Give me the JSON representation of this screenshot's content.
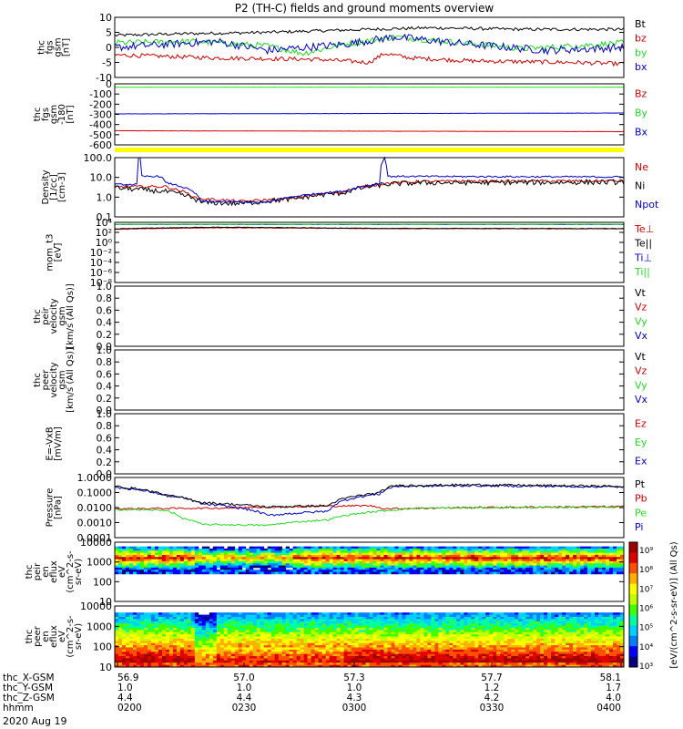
{
  "title": "P2 (TH-C) fields and ground moments overview",
  "date": "2020 Aug 19",
  "colors": {
    "black": "#000000",
    "red": "#d40000",
    "green": "#22dd22",
    "blue": "#0000cc",
    "yellow": "#ffff00"
  },
  "chart_data": [
    {
      "id": "fgs_small",
      "type": "line",
      "ylabel": [
        "thc",
        "fgs",
        "gsm",
        "[nT]"
      ],
      "yticks": [
        "10",
        "5",
        "0",
        "-5",
        "-10"
      ],
      "ylim": [
        -10,
        10
      ],
      "series": [
        {
          "name": "Bt",
          "color": "#000000",
          "anchors": [
            [
              0,
              4
            ],
            [
              0.12,
              4.5
            ],
            [
              0.3,
              5
            ],
            [
              0.5,
              6
            ],
            [
              0.62,
              6.5
            ],
            [
              0.8,
              6
            ],
            [
              1,
              6
            ]
          ],
          "noise": 0.5
        },
        {
          "name": "bz",
          "color": "#d40000",
          "anchors": [
            [
              0,
              -2.5
            ],
            [
              0.2,
              -3.5
            ],
            [
              0.4,
              -4
            ],
            [
              0.5,
              -5
            ],
            [
              0.53,
              -2
            ],
            [
              0.58,
              -3.5
            ],
            [
              0.7,
              -4.5
            ],
            [
              0.9,
              -5
            ],
            [
              1,
              -5.5
            ]
          ],
          "noise": 0.7
        },
        {
          "name": "by",
          "color": "#22dd22",
          "anchors": [
            [
              0,
              1.5
            ],
            [
              0.15,
              2
            ],
            [
              0.3,
              0.5
            ],
            [
              0.37,
              -2
            ],
            [
              0.45,
              1
            ],
            [
              0.55,
              3.5
            ],
            [
              0.72,
              1
            ],
            [
              0.8,
              -0.5
            ],
            [
              1,
              1.5
            ]
          ],
          "noise": 1.0
        },
        {
          "name": "bx",
          "color": "#0000cc",
          "anchors": [
            [
              0,
              0
            ],
            [
              0.2,
              2
            ],
            [
              0.3,
              -1
            ],
            [
              0.45,
              1
            ],
            [
              0.55,
              3.5
            ],
            [
              0.7,
              1
            ],
            [
              0.85,
              -1
            ],
            [
              1,
              0
            ]
          ],
          "noise": 1.3
        }
      ],
      "legend": [
        "Bt",
        "bz",
        "by",
        "bx"
      ]
    },
    {
      "id": "fgs_large",
      "type": "line",
      "ylabel": [
        "thc",
        "fgs",
        "gsm",
        "-180",
        "[nT]"
      ],
      "yticks": [
        "0",
        "-100",
        "-200",
        "-300",
        "-400",
        "-500",
        "-600"
      ],
      "ylim": [
        -650,
        40
      ],
      "series": [
        {
          "name": "Bz",
          "color": "#d40000",
          "anchors": [
            [
              0,
              -490
            ],
            [
              1,
              -500
            ]
          ],
          "noise": 1
        },
        {
          "name": "By",
          "color": "#22dd22",
          "anchors": [
            [
              0,
              2
            ],
            [
              1,
              2
            ]
          ],
          "noise": 0.5
        },
        {
          "name": "Bx",
          "color": "#0000cc",
          "anchors": [
            [
              0,
              -300
            ],
            [
              1,
              -290
            ]
          ],
          "noise": 1
        }
      ],
      "legend": [
        "Bz",
        "By",
        "Bx"
      ]
    },
    {
      "id": "density",
      "type": "line",
      "yscale": "log",
      "ylabel": [
        "Density",
        "[1/cc]",
        "[cm-3]"
      ],
      "yticks": [
        "100.0",
        "10.0",
        "1.0",
        "0.1"
      ],
      "ylim": [
        0.05,
        150
      ],
      "series": [
        {
          "name": "Ne",
          "color": "#d40000",
          "anchors": [
            [
              0,
              3
            ],
            [
              0.1,
              3
            ],
            [
              0.12,
              2
            ],
            [
              0.16,
              0.6
            ],
            [
              0.25,
              0.4
            ],
            [
              0.35,
              0.6
            ],
            [
              0.45,
              1.5
            ],
            [
              0.53,
              4.5
            ],
            [
              0.6,
              6
            ],
            [
              1,
              6.5
            ]
          ],
          "noise": 0.08
        },
        {
          "name": "Ni",
          "color": "#000000",
          "anchors": [
            [
              0,
              2.5
            ],
            [
              0.1,
              1.5
            ],
            [
              0.17,
              0.35
            ],
            [
              0.25,
              0.3
            ],
            [
              0.35,
              0.55
            ],
            [
              0.45,
              1.3
            ],
            [
              0.53,
              4
            ],
            [
              0.6,
              5
            ],
            [
              1,
              5.5
            ]
          ],
          "noise": 0.15
        },
        {
          "name": "Npot",
          "color": "#0000cc",
          "anchors": [
            [
              0,
              4
            ],
            [
              0.045,
              4
            ],
            [
              0.046,
              150
            ],
            [
              0.05,
              150
            ],
            [
              0.051,
              12
            ],
            [
              0.09,
              12
            ],
            [
              0.1,
              5
            ],
            [
              0.17,
              0.4
            ],
            [
              0.3,
              0.35
            ],
            [
              0.45,
              1.6
            ],
            [
              0.5,
              3.5
            ],
            [
              0.52,
              4.5
            ],
            [
              0.53,
              150
            ],
            [
              0.535,
              12
            ],
            [
              1,
              11
            ]
          ],
          "noise": 0.05
        }
      ],
      "legend": [
        "Ne",
        "Ni",
        "Npot"
      ]
    },
    {
      "id": "temp",
      "type": "line",
      "yscale": "log",
      "ylabel": [
        "mom_t3",
        "[eV]"
      ],
      "yticks": [
        "10⁴",
        "10²",
        "10⁰",
        "10⁻²",
        "10⁻⁴",
        "10⁻⁶",
        "10⁻⁸"
      ],
      "ylim": [
        1e-09,
        10000.0
      ],
      "series": [
        {
          "name": "Te⊥",
          "color": "#d40000",
          "anchors": [
            [
              0,
              300
            ],
            [
              0.2,
              700
            ],
            [
              0.5,
              450
            ],
            [
              1,
              400
            ]
          ],
          "noise": 0.05
        },
        {
          "name": "Te||",
          "color": "#000000",
          "anchors": [
            [
              0,
              400
            ],
            [
              0.2,
              900
            ],
            [
              0.5,
              500
            ],
            [
              1,
              450
            ]
          ],
          "noise": 0.05
        },
        {
          "name": "Ti⊥",
          "color": "#0000cc",
          "anchors": [
            [
              0,
              3500
            ],
            [
              1,
              3500
            ]
          ],
          "noise": 0.03
        },
        {
          "name": "Ti||",
          "color": "#22dd22",
          "anchors": [
            [
              0,
              4000
            ],
            [
              1,
              4000
            ]
          ],
          "noise": 0.03
        }
      ],
      "legend": [
        "Te⊥",
        "Te||",
        "Ti⊥",
        "Ti||"
      ]
    },
    {
      "id": "peir_vel",
      "type": "line",
      "ylabel": [
        "thc",
        "peir",
        "velocity",
        "gsm",
        "[km/s (All Qs)]"
      ],
      "yticks": [
        "1.0",
        "0.8",
        "0.6",
        "0.4",
        "0.2",
        "0.0"
      ],
      "ylim": [
        0,
        1
      ],
      "series": [],
      "legend": [
        "Vt",
        "Vz",
        "Vy",
        "Vx"
      ]
    },
    {
      "id": "peer_vel",
      "type": "line",
      "ylabel": [
        "thc",
        "peer",
        "velocity",
        "gsm",
        "[km/s (All Qs)]"
      ],
      "yticks": [
        "1.0",
        "0.8",
        "0.6",
        "0.4",
        "0.2",
        "0.0"
      ],
      "ylim": [
        0,
        1
      ],
      "series": [],
      "legend": [
        "Vt",
        "Vz",
        "Vy",
        "Vx"
      ]
    },
    {
      "id": "exb",
      "type": "line",
      "ylabel": [
        "E=-VxB",
        "[mV/m]"
      ],
      "yticks": [
        "1.0",
        "0.8",
        "0.6",
        "0.4",
        "0.2",
        "0.0"
      ],
      "ylim": [
        0,
        1
      ],
      "series": [],
      "legend": [
        "Ez",
        "Ey",
        "Ex"
      ]
    },
    {
      "id": "pressure",
      "type": "line",
      "yscale": "log",
      "ylabel": [
        "Pressure",
        "[nPa]"
      ],
      "yticks": [
        "1.0000",
        "0.1000",
        "0.0100",
        "0.0010",
        "0.0001"
      ],
      "ylim": [
        8e-05,
        1.5
      ],
      "series": [
        {
          "name": "Pb",
          "color": "#d40000",
          "anchors": [
            [
              0,
              0.009
            ],
            [
              0.2,
              0.01
            ],
            [
              0.3,
              0.012
            ],
            [
              0.5,
              0.015
            ],
            [
              0.53,
              0.009
            ],
            [
              0.7,
              0.011
            ],
            [
              1,
              0.013
            ]
          ],
          "noise": 0.06
        },
        {
          "name": "Pe",
          "color": "#22dd22",
          "anchors": [
            [
              0,
              0.008
            ],
            [
              0.1,
              0.007
            ],
            [
              0.13,
              0.002
            ],
            [
              0.17,
              0.0007
            ],
            [
              0.3,
              0.0006
            ],
            [
              0.42,
              0.0015
            ],
            [
              0.52,
              0.006
            ],
            [
              0.6,
              0.01
            ],
            [
              1,
              0.012
            ]
          ],
          "noise": 0.06
        },
        {
          "name": "Pi",
          "color": "#0000cc",
          "anchors": [
            [
              0,
              0.3
            ],
            [
              0.1,
              0.08
            ],
            [
              0.17,
              0.02
            ],
            [
              0.3,
              0.003
            ],
            [
              0.42,
              0.006
            ],
            [
              0.52,
              0.1
            ],
            [
              0.55,
              0.35
            ],
            [
              0.7,
              0.4
            ],
            [
              1,
              0.32
            ]
          ],
          "noise": 0.08
        },
        {
          "name": "Pt",
          "color": "#000000",
          "anchors": [
            [
              0,
              0.35
            ],
            [
              0.1,
              0.08
            ],
            [
              0.17,
              0.025
            ],
            [
              0.3,
              0.012
            ],
            [
              0.42,
              0.015
            ],
            [
              0.52,
              0.12
            ],
            [
              0.55,
              0.4
            ],
            [
              0.7,
              0.45
            ],
            [
              1,
              0.35
            ]
          ],
          "noise": 0.08
        }
      ],
      "legend": [
        "Pt",
        "Pb",
        "Pe",
        "Pi"
      ]
    },
    {
      "id": "peir_spec",
      "type": "heatmap",
      "ylabel": [
        "thc",
        "peir",
        "en",
        "eflux",
        "eV",
        "(cm^2-s-",
        "sr-eV)"
      ],
      "yticks": [
        "10000",
        "1000",
        "100",
        "10"
      ],
      "ylim": [
        5,
        20000
      ]
    },
    {
      "id": "peer_spec",
      "type": "heatmap",
      "ylabel": [
        "thc",
        "peer",
        "en",
        "eflux",
        "eV",
        "(cm^2-s-",
        "sr-eV)"
      ],
      "yticks": [
        "10000",
        "1000",
        "100",
        "10"
      ],
      "ylim": [
        5,
        20000
      ]
    }
  ],
  "colorbar": {
    "label": "[eV/(cm^2-s-sr-eV)] (All Qs)",
    "ticks": [
      "10⁹",
      "10⁸",
      "10⁷",
      "10⁶",
      "10⁵",
      "10⁴",
      "10³"
    ]
  },
  "xaxis": {
    "rows": [
      {
        "label": "thc_X-GSM",
        "values": [
          "56.9",
          "57.0",
          "57.3",
          "57.7",
          "58.1"
        ]
      },
      {
        "label": "thc_Y-GSM",
        "values": [
          "1.0",
          "1.0",
          "1.0",
          "1.2",
          "1.7"
        ]
      },
      {
        "label": "thc_Z-GSM",
        "values": [
          "4.4",
          "4.4",
          "4.3",
          "4.2",
          "4.0"
        ]
      },
      {
        "label": "hhmm",
        "values": [
          "0200",
          "0230",
          "0300",
          "0330",
          "0400"
        ]
      }
    ]
  }
}
